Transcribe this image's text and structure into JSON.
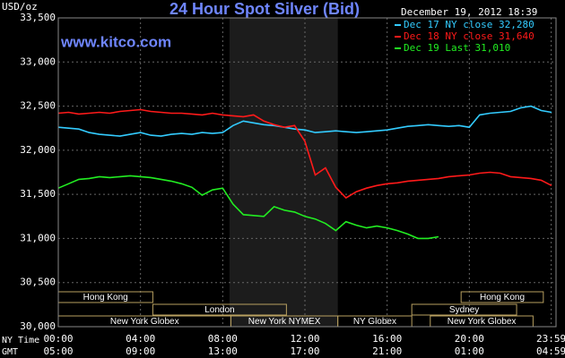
{
  "chart_data": {
    "type": "line",
    "title": "24 Hour Spot Silver (Bid)",
    "watermark": "www.kitco.com",
    "ylabel": "USD/oz",
    "timestamp": "December 19, 2012 18:39",
    "x_row_labels": [
      "NY Time",
      "GMT"
    ],
    "xlim": [
      0,
      24
    ],
    "xticks": [
      {
        "value": 0,
        "label": "00:00"
      },
      {
        "value": 4,
        "label": "04:00"
      },
      {
        "value": 8,
        "label": "08:00"
      },
      {
        "value": 12,
        "label": "12:00"
      },
      {
        "value": 16,
        "label": "16:00"
      },
      {
        "value": 20,
        "label": "20:00"
      },
      {
        "value": 23.983,
        "label": "23:59"
      }
    ],
    "gmt_tick_labels": [
      "05:00",
      "09:00",
      "13:00",
      "17:00",
      "21:00",
      "01:00",
      "04:59"
    ],
    "ylim": [
      30000,
      33500
    ],
    "yticks": [
      {
        "value": 30000,
        "label": "30,000"
      },
      {
        "value": 30500,
        "label": "30,500"
      },
      {
        "value": 31000,
        "label": "31,000"
      },
      {
        "value": 31500,
        "label": "31,500"
      },
      {
        "value": 32000,
        "label": "32,000"
      },
      {
        "value": 32500,
        "label": "32,500"
      },
      {
        "value": 33000,
        "label": "33,000"
      },
      {
        "value": 33500,
        "label": "33,500"
      }
    ],
    "grid": true,
    "shaded_region": [
      8.33,
      13.6
    ],
    "sessions": [
      {
        "label": "Hong Kong",
        "start": 0,
        "end": 4.6
      },
      {
        "label": "Hong Kong",
        "start": 19.6,
        "end": 23.6
      },
      {
        "label": "London",
        "start": 4.6,
        "end": 11.1
      },
      {
        "label": "Sydney",
        "start": 17.2,
        "end": 22.3
      },
      {
        "label": "New York Globex",
        "start": 0,
        "end": 8.4
      },
      {
        "label": "New York NYMEX",
        "start": 8.4,
        "end": 13.6
      },
      {
        "label": "NY Globex",
        "start": 13.6,
        "end": 17.2
      },
      {
        "label": "New York Globex",
        "start": 18.1,
        "end": 23.1
      }
    ],
    "x": [
      0,
      0.5,
      1,
      1.5,
      2,
      2.5,
      3,
      3.5,
      4,
      4.5,
      5,
      5.5,
      6,
      6.5,
      7,
      7.5,
      8,
      8.5,
      9,
      9.5,
      10,
      10.5,
      11,
      11.5,
      12,
      12.5,
      13,
      13.5,
      14,
      14.5,
      15,
      15.5,
      16,
      16.5,
      17,
      17.5,
      18,
      18.5,
      19,
      19.5,
      20,
      20.5,
      21,
      21.5,
      22,
      22.5,
      23,
      23.5,
      24
    ],
    "series": [
      {
        "name": "Dec 17 NY close 32,280",
        "color": "#33ccff",
        "values": [
          32260,
          32250,
          32240,
          32200,
          32180,
          32170,
          32160,
          32180,
          32200,
          32170,
          32160,
          32180,
          32190,
          32180,
          32200,
          32190,
          32200,
          32280,
          32330,
          32310,
          32290,
          32280,
          32260,
          32240,
          32230,
          32200,
          32210,
          32220,
          32210,
          32200,
          32210,
          32220,
          32230,
          32250,
          32270,
          32280,
          32290,
          32280,
          32270,
          32280,
          32260,
          32400,
          32420,
          32430,
          32440,
          32480,
          32500,
          32450,
          32430
        ]
      },
      {
        "name": "Dec 18 NY close 31,640",
        "color": "#ff1a1a",
        "values": [
          32420,
          32430,
          32410,
          32420,
          32430,
          32420,
          32440,
          32450,
          32460,
          32440,
          32430,
          32420,
          32420,
          32410,
          32400,
          32420,
          32400,
          32390,
          32380,
          32400,
          32330,
          32290,
          32260,
          32280,
          32100,
          31720,
          31800,
          31580,
          31460,
          31530,
          31570,
          31600,
          31620,
          31630,
          31650,
          31660,
          31670,
          31680,
          31700,
          31710,
          31720,
          31740,
          31750,
          31740,
          31700,
          31690,
          31680,
          31660,
          31600
        ]
      },
      {
        "name": "Dec 19 Last 31,010",
        "color": "#22ee22",
        "values": [
          31570,
          31620,
          31670,
          31680,
          31700,
          31690,
          31700,
          31710,
          31700,
          31690,
          31670,
          31650,
          31620,
          31580,
          31490,
          31550,
          31570,
          31390,
          31270,
          31260,
          31250,
          31360,
          31320,
          31300,
          31250,
          31220,
          31170,
          31090,
          31190,
          31150,
          31120,
          31140,
          31120,
          31090,
          31050,
          31000,
          31000,
          31020,
          null,
          null,
          null,
          null,
          null,
          null,
          null,
          null,
          null,
          null,
          null
        ]
      }
    ]
  }
}
